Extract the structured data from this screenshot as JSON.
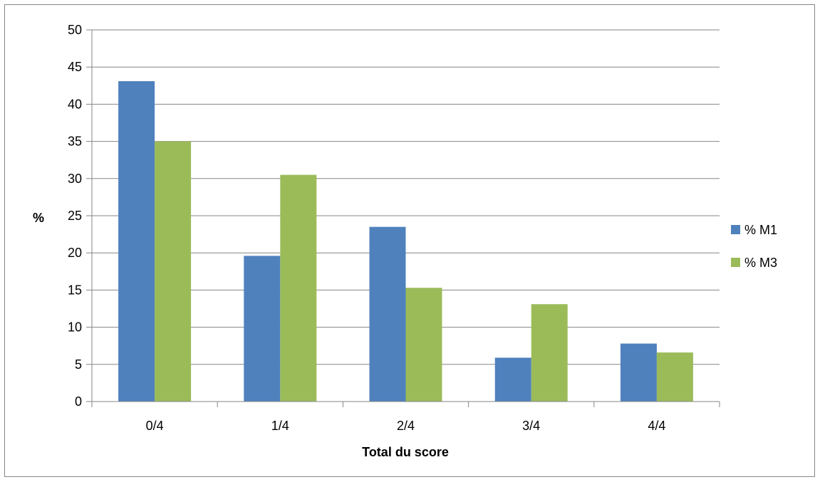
{
  "chart_data": {
    "type": "bar",
    "title": "",
    "xlabel": "Total du score",
    "ylabel": "%",
    "categories": [
      "0/4",
      "1/4",
      "2/4",
      "3/4",
      "4/4"
    ],
    "series": [
      {
        "name": "% M1",
        "color": "#4F81BD",
        "values": [
          43.1,
          19.6,
          23.5,
          5.9,
          7.8
        ]
      },
      {
        "name": "% M3",
        "color": "#9BBB59",
        "values": [
          35.0,
          30.5,
          15.3,
          13.1,
          6.6
        ]
      }
    ],
    "ylim": [
      0,
      50
    ],
    "yticks": [
      "0",
      "5",
      "10",
      "15",
      "20",
      "25",
      "30",
      "35",
      "40",
      "45",
      "50"
    ],
    "grid": true,
    "legend_position": "right"
  }
}
